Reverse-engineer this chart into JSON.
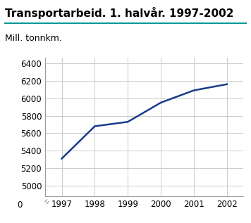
{
  "title": "Transportarbeid. 1. halvår. 1997-2002",
  "ylabel": "Mill. tonnkm.",
  "x": [
    1997,
    1998,
    1999,
    2000,
    2001,
    2002
  ],
  "y": [
    5310,
    5680,
    5730,
    5950,
    6090,
    6160
  ],
  "line_color": "#1a3a8a",
  "line_width": 1.8,
  "ylim_main": [
    4900,
    6500
  ],
  "yticks": [
    5000,
    5200,
    5400,
    5600,
    5800,
    6000,
    6200,
    6400
  ],
  "ytick_bottom": 0,
  "background_color": "#ffffff",
  "grid_color": "#cccccc",
  "title_color": "#000000",
  "title_fontsize": 11,
  "label_fontsize": 9,
  "tick_fontsize": 8.5,
  "teal_line_color": "#009999"
}
